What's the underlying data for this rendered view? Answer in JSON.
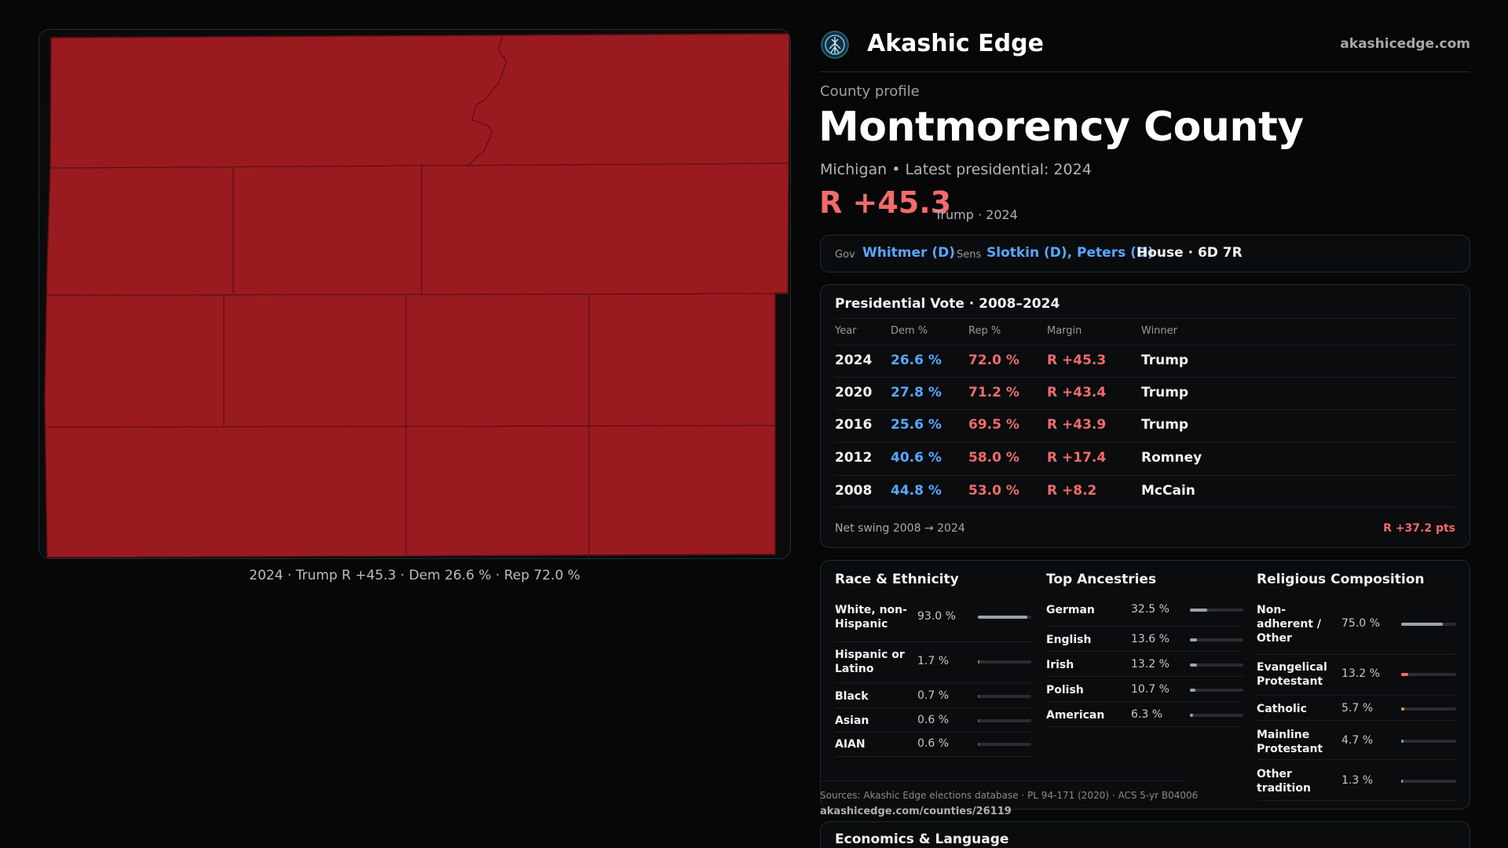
{
  "brand": {
    "name": "Akashic Edge",
    "url": "akashicedge.com",
    "logo_icon": "tree-of-life-icon"
  },
  "map": {
    "caption": "2024 · Trump R +45.3 · Dem 26.6 % · Rep 72.0 %",
    "fill_color": "#9a1b1f",
    "border_color": "#5a1012"
  },
  "profile": {
    "kicker": "County profile",
    "title": "Montmorency County",
    "subtitle": "Michigan • Latest presidential: 2024",
    "margin": "R +45.3",
    "margin_note": "Trump · 2024"
  },
  "officials": {
    "gov_label": "Gov",
    "gov_value": "Whitmer (D)",
    "sens_label": "Sens",
    "sens_value": "Slotkin (D), Peters (D)",
    "house_value": "House · 6D 7R"
  },
  "presidential": {
    "title": "Presidential Vote · 2008–2024",
    "headers": [
      "Year",
      "Dem %",
      "Rep %",
      "Margin",
      "Winner"
    ],
    "rows": [
      {
        "year": "2024",
        "dem": "26.6 %",
        "rep": "72.0 %",
        "margin": "R +45.3",
        "winner": "Trump"
      },
      {
        "year": "2020",
        "dem": "27.8 %",
        "rep": "71.2 %",
        "margin": "R +43.4",
        "winner": "Trump"
      },
      {
        "year": "2016",
        "dem": "25.6 %",
        "rep": "69.5 %",
        "margin": "R +43.9",
        "winner": "Trump"
      },
      {
        "year": "2012",
        "dem": "40.6 %",
        "rep": "58.0 %",
        "margin": "R +17.4",
        "winner": "Romney"
      },
      {
        "year": "2008",
        "dem": "44.8 %",
        "rep": "53.0 %",
        "margin": "R +8.2",
        "winner": "McCain"
      }
    ],
    "swing_label": "Net swing 2008 → 2024",
    "swing_value": "R +37.2 pts"
  },
  "race": {
    "title": "Race & Ethnicity",
    "items": [
      {
        "name": "White, non-Hispanic",
        "pct": "93.0 %",
        "share": 0.93,
        "color": "#9ca3ad"
      },
      {
        "name": "Hispanic or Latino",
        "pct": "1.7 %",
        "share": 0.017,
        "color": "#f26b6b"
      },
      {
        "name": "Black",
        "pct": "0.7 %",
        "share": 0.007,
        "color": "#555a60"
      },
      {
        "name": "Asian",
        "pct": "0.6 %",
        "share": 0.006,
        "color": "#555a60"
      },
      {
        "name": "AIAN",
        "pct": "0.6 %",
        "share": 0.006,
        "color": "#555a60"
      }
    ]
  },
  "ancestry": {
    "title": "Top Ancestries",
    "items": [
      {
        "name": "German",
        "pct": "32.5 %",
        "share": 0.325,
        "color": "#9ca3ad"
      },
      {
        "name": "English",
        "pct": "13.6 %",
        "share": 0.136,
        "color": "#9ca3ad"
      },
      {
        "name": "Irish",
        "pct": "13.2 %",
        "share": 0.132,
        "color": "#9ca3ad"
      },
      {
        "name": "Polish",
        "pct": "10.7 %",
        "share": 0.107,
        "color": "#9ca3ad"
      },
      {
        "name": "American",
        "pct": "6.3 %",
        "share": 0.063,
        "color": "#9ca3ad"
      }
    ]
  },
  "religion": {
    "title": "Religious Composition",
    "items": [
      {
        "name": "Non-adherent / Other",
        "pct": "75.0 %",
        "share": 0.75,
        "color": "#9ca3ad"
      },
      {
        "name": "Evangelical Protestant",
        "pct": "13.2 %",
        "share": 0.132,
        "color": "#f26b6b"
      },
      {
        "name": "Catholic",
        "pct": "5.7 %",
        "share": 0.057,
        "color": "#f0a030"
      },
      {
        "name": "Mainline Protestant",
        "pct": "4.7 %",
        "share": 0.047,
        "color": "#5aa6ff"
      },
      {
        "name": "Other tradition",
        "pct": "1.3 %",
        "share": 0.013,
        "color": "#9ca3ad"
      }
    ]
  },
  "sources": {
    "text": "Sources: Akashic Edge elections database · PL 94-171 (2020) · ACS 5-yr B04006",
    "url": "akashicedge.com/counties/26119"
  },
  "economics": {
    "title": "Economics & Language"
  }
}
